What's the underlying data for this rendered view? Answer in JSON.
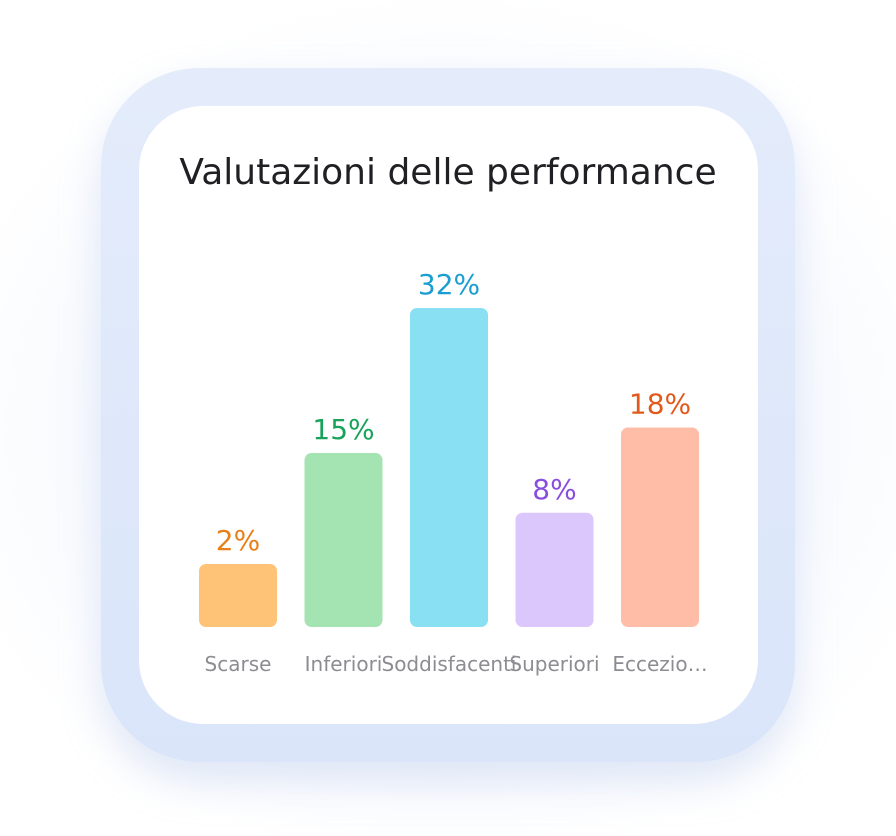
{
  "chart_data": {
    "type": "bar",
    "title": "Valutazioni delle performance",
    "categories": [
      "Scarse",
      "Inferiori",
      "Soddisfacenti",
      "Superiori",
      "Eccezio…"
    ],
    "values": [
      2,
      15,
      32,
      8,
      18
    ],
    "value_labels": [
      "2%",
      "15%",
      "32%",
      "8%",
      "18%"
    ],
    "ylim": [
      0,
      32
    ],
    "grid": false,
    "legend": "none",
    "colors": {
      "bars": [
        "#ffc377",
        "#a4e3b2",
        "#8ae0f3",
        "#dcc7fd",
        "#ffbda8"
      ],
      "labels": [
        "#e8801a",
        "#17a35a",
        "#1a9ed1",
        "#8a4ede",
        "#e05a1c"
      ]
    }
  }
}
